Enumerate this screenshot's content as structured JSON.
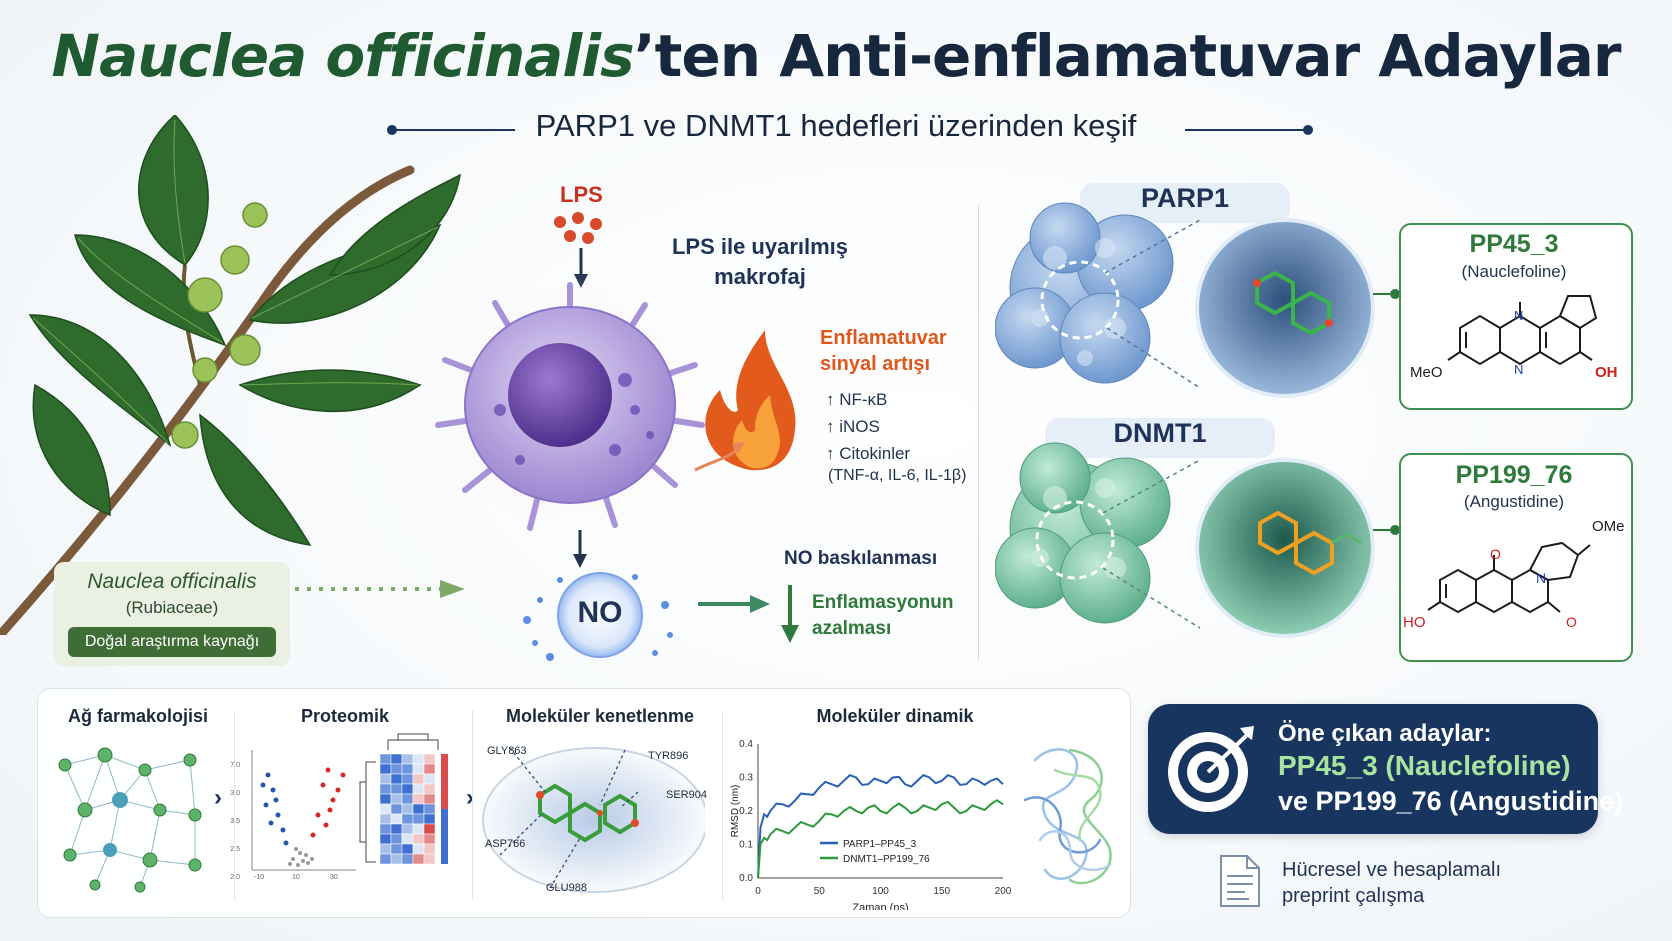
{
  "title": {
    "species": "Nauclea officinalis",
    "suffix": "’ten Anti-enflamatuvar Adaylar"
  },
  "subtitle": "PARP1 ve DNMT1 hedefleri üzerinden keşif",
  "plant": {
    "name": "Nauclea officinalis",
    "family": "(Rubiaceae)",
    "tag": "Doğal araştırma kaynağı"
  },
  "cell": {
    "lps": "LPS",
    "label_line1": "LPS ile uyarılmış",
    "label_line2": "makrofaj",
    "signal_title_1": "Enflamatuvar",
    "signal_title_2": "sinyal artışı",
    "markers": [
      "NF-κB",
      "iNOS",
      "Citokinler"
    ],
    "cytokines": "(TNF-α, IL-6, IL-1β)",
    "no": "NO",
    "no_suppression": "NO baskılanması",
    "reduction_1": "Enflamasyonun",
    "reduction_2": "azalması"
  },
  "targets": [
    {
      "name": "PARP1",
      "compound": "PP45_3",
      "common": "(Nauclefoline)",
      "sub_left": "MeO",
      "sub_right": "OH",
      "atom_n1": "N",
      "atom_n2": "N"
    },
    {
      "name": "DNMT1",
      "compound": "PP199_76",
      "common": "(Angustidine)",
      "sub_top": "OMe",
      "sub_left": "HO",
      "sub_o1": "O",
      "sub_o2": "O",
      "atom_n": "N"
    }
  ],
  "workflow": {
    "steps": [
      "Ağ farmakolojisi",
      "Proteomik",
      "Moleküler kenetlenme",
      "Moleküler dinamik"
    ],
    "volcano_ticks_y": [
      "7.0",
      "3.0",
      "3.5",
      "2.5",
      "2.0"
    ],
    "volcano_ticks_x": [
      "-10",
      "10",
      "30"
    ],
    "residues": [
      "GLY863",
      "TYR896",
      "SER904",
      "ASP766",
      "GLU988"
    ]
  },
  "chart_data": {
    "type": "line",
    "xlabel": "Zaman (ns)",
    "ylabel": "RMSD (nm)",
    "xlim": [
      0,
      200
    ],
    "ylim": [
      0,
      0.4
    ],
    "xticks": [
      0,
      50,
      100,
      150,
      200
    ],
    "yticks": [
      0.0,
      0.1,
      0.2,
      0.3,
      0.4
    ],
    "legend_position": "bottom-right",
    "series": [
      {
        "name": "PARP1–PP45_3",
        "color": "#2a5fb8",
        "x": [
          0,
          2,
          5,
          10,
          20,
          30,
          40,
          50,
          60,
          70,
          80,
          90,
          100,
          110,
          120,
          130,
          140,
          150,
          160,
          170,
          180,
          190,
          200
        ],
        "y": [
          0.0,
          0.15,
          0.19,
          0.2,
          0.22,
          0.23,
          0.25,
          0.27,
          0.28,
          0.29,
          0.3,
          0.28,
          0.29,
          0.3,
          0.28,
          0.29,
          0.3,
          0.29,
          0.3,
          0.28,
          0.29,
          0.29,
          0.28
        ]
      },
      {
        "name": "DNMT1–PP199_76",
        "color": "#2a9a3c",
        "x": [
          0,
          2,
          5,
          10,
          20,
          30,
          40,
          50,
          60,
          70,
          80,
          90,
          100,
          110,
          120,
          130,
          140,
          150,
          160,
          170,
          180,
          190,
          200
        ],
        "y": [
          0.0,
          0.1,
          0.12,
          0.13,
          0.14,
          0.15,
          0.16,
          0.17,
          0.19,
          0.2,
          0.2,
          0.21,
          0.2,
          0.21,
          0.21,
          0.2,
          0.21,
          0.22,
          0.21,
          0.2,
          0.21,
          0.22,
          0.22
        ]
      }
    ]
  },
  "candidates": {
    "heading": "Öne çıkan adaylar:",
    "line1": "PP45_3 (Nauclefoline)",
    "line2": "ve PP199_76 (Angustidine)"
  },
  "note": {
    "line1": "Hücresel ve hesaplamalı",
    "line2": "preprint çalışma"
  },
  "colors": {
    "navy": "#17355f",
    "green": "#2f7a3a",
    "lps_red": "#c8321f",
    "flame": "#e25a1c",
    "parp_blue": "#8fb3df",
    "dnmt_teal": "#7fc8aa"
  }
}
